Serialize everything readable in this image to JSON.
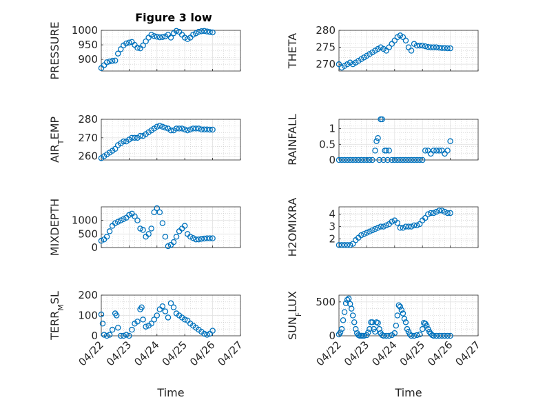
{
  "figure": {
    "title": "Figure 3 low",
    "marker_color": "#0072BD"
  },
  "chart_data": [
    {
      "type": "scatter",
      "panel": 0,
      "ylabel": "PRESSURE",
      "ylim": [
        860,
        1000
      ],
      "yticks": [
        900,
        950,
        1000
      ],
      "xlim": [
        "04/22",
        "04/27"
      ],
      "xticks": [],
      "series": [
        {
          "x": [
            0,
            0.1,
            0.2,
            0.3,
            0.4,
            0.5,
            0.6,
            0.7,
            0.8,
            0.9,
            1,
            1.1,
            1.2,
            1.3,
            1.4,
            1.5,
            1.6,
            1.7,
            1.8,
            1.9,
            2,
            2.1,
            2.2,
            2.3,
            2.4,
            2.5,
            2.6,
            2.7,
            2.8,
            2.9,
            3,
            3.1,
            3.2,
            3.3,
            3.4,
            3.5,
            3.6,
            3.7,
            3.8,
            3.9,
            4
          ],
          "y": [
            870,
            880,
            890,
            893,
            895,
            896,
            920,
            935,
            948,
            955,
            958,
            960,
            950,
            940,
            938,
            948,
            962,
            975,
            985,
            980,
            978,
            976,
            977,
            979,
            985,
            975,
            990,
            998,
            995,
            985,
            975,
            970,
            975,
            985,
            990,
            995,
            997,
            998,
            996,
            994,
            993
          ]
        }
      ]
    },
    {
      "type": "scatter",
      "panel": 1,
      "ylabel": "THETA",
      "ylim": [
        268,
        280
      ],
      "yticks": [
        270,
        275,
        280
      ],
      "xlim": [
        "04/22",
        "04/27"
      ],
      "xticks": [],
      "series": [
        {
          "x": [
            0,
            0.1,
            0.2,
            0.3,
            0.4,
            0.5,
            0.6,
            0.7,
            0.8,
            0.9,
            1,
            1.1,
            1.2,
            1.3,
            1.4,
            1.5,
            1.6,
            1.7,
            1.8,
            1.9,
            2,
            2.1,
            2.2,
            2.3,
            2.4,
            2.5,
            2.6,
            2.7,
            2.8,
            2.9,
            3,
            3.1,
            3.2,
            3.3,
            3.4,
            3.5,
            3.6,
            3.7,
            3.8,
            3.9,
            4
          ],
          "y": [
            270,
            269,
            269.5,
            270,
            270.5,
            270,
            270.5,
            271,
            271.5,
            272,
            272.5,
            273,
            273.5,
            274,
            274.5,
            275,
            274.5,
            274,
            275,
            276,
            277,
            278,
            278.5,
            278,
            277,
            275,
            274,
            276,
            275.5,
            275.5,
            275.5,
            275.3,
            275.1,
            275,
            275,
            275,
            274.9,
            274.8,
            274.8,
            274.7,
            274.7
          ]
        }
      ]
    },
    {
      "type": "scatter",
      "panel": 2,
      "ylabel": "AIR_TEMP",
      "ylim": [
        258,
        280
      ],
      "yticks": [
        260,
        270,
        280
      ],
      "xlim": [
        "04/22",
        "04/27"
      ],
      "xticks": [],
      "series": [
        {
          "x": [
            0,
            0.1,
            0.2,
            0.3,
            0.4,
            0.5,
            0.6,
            0.7,
            0.8,
            0.9,
            1,
            1.1,
            1.2,
            1.3,
            1.4,
            1.5,
            1.6,
            1.7,
            1.8,
            1.9,
            2,
            2.1,
            2.2,
            2.3,
            2.4,
            2.5,
            2.6,
            2.7,
            2.8,
            2.9,
            3,
            3.1,
            3.2,
            3.3,
            3.4,
            3.5,
            3.6,
            3.7,
            3.8,
            3.9,
            4
          ],
          "y": [
            259,
            260,
            261,
            262,
            263,
            264,
            266,
            267,
            268,
            268,
            269,
            270,
            270,
            270,
            271,
            271,
            272,
            273,
            274,
            275,
            276,
            276.5,
            276,
            275.5,
            275,
            274,
            274,
            275,
            275,
            275,
            274.5,
            274,
            274.5,
            275,
            275,
            275,
            274.5,
            274.5,
            274.5,
            274.4,
            274.4
          ]
        }
      ]
    },
    {
      "type": "scatter",
      "panel": 3,
      "ylabel": "RAINFALL",
      "ylim": [
        0,
        1.3
      ],
      "yticks": [
        0,
        0.5,
        1
      ],
      "xlim": [
        "04/22",
        "04/27"
      ],
      "xticks": [],
      "series": [
        {
          "x": [
            0,
            0.1,
            0.2,
            0.3,
            0.4,
            0.5,
            0.6,
            0.7,
            0.8,
            0.9,
            1,
            1.1,
            1.2,
            1.3,
            1.35,
            1.4,
            1.45,
            1.5,
            1.55,
            1.6,
            1.65,
            1.7,
            1.75,
            1.8,
            1.9,
            2,
            2.1,
            2.2,
            2.3,
            2.4,
            2.5,
            2.6,
            2.7,
            2.8,
            2.9,
            3,
            3.1,
            3.2,
            3.3,
            3.4,
            3.5,
            3.6,
            3.7,
            3.8,
            3.9,
            4
          ],
          "y": [
            0,
            0,
            0,
            0,
            0,
            0,
            0,
            0,
            0,
            0,
            0,
            0,
            0,
            0.3,
            0.6,
            0.7,
            0,
            1.3,
            1.3,
            0,
            0.3,
            0.3,
            0,
            0.3,
            0,
            0,
            0,
            0,
            0,
            0,
            0,
            0,
            0,
            0,
            0,
            0,
            0.3,
            0.3,
            0.2,
            0.3,
            0.3,
            0.3,
            0.3,
            0.2,
            0.3,
            0.6
          ]
        }
      ]
    },
    {
      "type": "scatter",
      "panel": 4,
      "ylabel": "MIXDEPTH",
      "ylim": [
        0,
        1500
      ],
      "yticks": [
        0,
        500,
        1000
      ],
      "xlim": [
        "04/22",
        "04/27"
      ],
      "xticks": [],
      "series": [
        {
          "x": [
            0,
            0.1,
            0.2,
            0.3,
            0.4,
            0.5,
            0.6,
            0.7,
            0.8,
            0.9,
            1,
            1.1,
            1.2,
            1.3,
            1.4,
            1.5,
            1.6,
            1.7,
            1.8,
            1.9,
            2,
            2.1,
            2.2,
            2.3,
            2.4,
            2.5,
            2.6,
            2.7,
            2.8,
            2.9,
            3,
            3.1,
            3.2,
            3.3,
            3.4,
            3.5,
            3.6,
            3.7,
            3.8,
            3.9,
            4
          ],
          "y": [
            250,
            300,
            400,
            600,
            800,
            900,
            950,
            1000,
            1050,
            1100,
            1200,
            1250,
            1150,
            1000,
            700,
            650,
            400,
            500,
            700,
            1300,
            1450,
            1300,
            900,
            400,
            50,
            100,
            200,
            400,
            600,
            700,
            800,
            500,
            400,
            350,
            300,
            300,
            320,
            330,
            340,
            340,
            340
          ]
        }
      ]
    },
    {
      "type": "scatter",
      "panel": 5,
      "ylabel": "H2OMIXRA",
      "ylim": [
        1.3,
        4.6
      ],
      "yticks": [
        2,
        3,
        4
      ],
      "xlim": [
        "04/22",
        "04/27"
      ],
      "xticks": [],
      "series": [
        {
          "x": [
            0,
            0.1,
            0.2,
            0.3,
            0.4,
            0.5,
            0.6,
            0.7,
            0.8,
            0.9,
            1,
            1.1,
            1.2,
            1.3,
            1.4,
            1.5,
            1.6,
            1.7,
            1.8,
            1.9,
            2,
            2.1,
            2.2,
            2.3,
            2.4,
            2.5,
            2.6,
            2.7,
            2.8,
            2.9,
            3,
            3.1,
            3.2,
            3.3,
            3.4,
            3.5,
            3.6,
            3.7,
            3.8,
            3.9,
            4
          ],
          "y": [
            1.5,
            1.5,
            1.5,
            1.5,
            1.5,
            1.6,
            1.9,
            2.1,
            2.3,
            2.4,
            2.5,
            2.6,
            2.7,
            2.8,
            2.9,
            3.0,
            3.0,
            3.1,
            3.2,
            3.4,
            3.5,
            3.3,
            2.9,
            2.9,
            3.0,
            3.0,
            3.0,
            3.1,
            3.1,
            3.2,
            3.5,
            3.7,
            4.0,
            4.1,
            4.1,
            4.2,
            4.3,
            4.3,
            4.2,
            4.1,
            4.1
          ]
        }
      ]
    },
    {
      "type": "scatter",
      "panel": 6,
      "ylabel": "TERR_MSL",
      "ylim": [
        0,
        200
      ],
      "yticks": [
        0,
        100,
        200
      ],
      "xlim": [
        "04/22",
        "04/27"
      ],
      "xticks": [
        "04/22",
        "04/23",
        "04/24",
        "04/25",
        "04/26",
        "04/27"
      ],
      "xlabel": "Time",
      "series": [
        {
          "x": [
            0,
            0.05,
            0.1,
            0.2,
            0.3,
            0.4,
            0.5,
            0.55,
            0.6,
            0.7,
            0.8,
            0.9,
            1,
            1.1,
            1.2,
            1.3,
            1.4,
            1.45,
            1.5,
            1.6,
            1.7,
            1.8,
            1.9,
            2,
            2.1,
            2.2,
            2.3,
            2.4,
            2.5,
            2.6,
            2.7,
            2.8,
            2.9,
            3,
            3.1,
            3.2,
            3.3,
            3.4,
            3.5,
            3.6,
            3.7,
            3.8,
            3.9,
            4
          ],
          "y": [
            105,
            60,
            5,
            0,
            5,
            30,
            110,
            100,
            40,
            0,
            0,
            5,
            0,
            30,
            60,
            70,
            130,
            140,
            80,
            45,
            50,
            60,
            80,
            100,
            130,
            145,
            120,
            90,
            160,
            140,
            110,
            100,
            90,
            80,
            75,
            60,
            50,
            40,
            30,
            20,
            10,
            5,
            10,
            25
          ]
        }
      ]
    },
    {
      "type": "scatter",
      "panel": 7,
      "ylabel": "SUN_FLUX",
      "ylim": [
        0,
        600
      ],
      "yticks": [
        0,
        500
      ],
      "xlim": [
        "04/22",
        "04/27"
      ],
      "xticks": [
        "04/22",
        "04/23",
        "04/24",
        "04/25",
        "04/26",
        "04/27"
      ],
      "xlabel": "Time",
      "series": [
        {
          "x": [
            0,
            0.05,
            0.1,
            0.15,
            0.2,
            0.25,
            0.3,
            0.35,
            0.4,
            0.45,
            0.5,
            0.55,
            0.6,
            0.65,
            0.7,
            0.75,
            0.8,
            0.85,
            0.9,
            1,
            1.05,
            1.1,
            1.15,
            1.2,
            1.25,
            1.3,
            1.35,
            1.4,
            1.45,
            1.5,
            1.55,
            1.6,
            1.7,
            1.8,
            1.9,
            2,
            2.05,
            2.1,
            2.15,
            2.2,
            2.25,
            2.3,
            2.35,
            2.4,
            2.45,
            2.5,
            2.55,
            2.6,
            2.7,
            2.8,
            2.9,
            3,
            3.05,
            3.1,
            3.15,
            3.2,
            3.25,
            3.3,
            3.35,
            3.4,
            3.5,
            3.6,
            3.7,
            3.8,
            3.9,
            4
          ],
          "y": [
            20,
            50,
            100,
            230,
            350,
            480,
            530,
            550,
            470,
            400,
            300,
            200,
            100,
            40,
            10,
            0,
            0,
            0,
            0,
            10,
            50,
            100,
            200,
            200,
            100,
            60,
            200,
            190,
            100,
            40,
            10,
            0,
            0,
            0,
            10,
            40,
            150,
            300,
            450,
            430,
            380,
            330,
            250,
            200,
            100,
            60,
            20,
            0,
            0,
            10,
            20,
            100,
            190,
            180,
            150,
            100,
            60,
            30,
            10,
            0,
            0,
            0,
            0,
            0,
            0,
            0
          ]
        }
      ]
    }
  ]
}
